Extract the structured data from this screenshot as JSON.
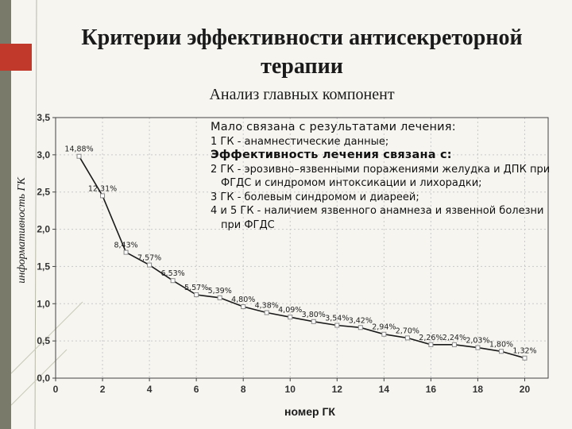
{
  "slide": {
    "title_line1": "Критерии эффективности антисекреторной",
    "title_line2": "терапии",
    "subtitle": "Анализ главных компонент"
  },
  "note": {
    "header1": "Мало связана с результатами лечения:",
    "item1": "1 ГК - анамнестические данные;",
    "header2": "Эффективность лечения связана с:",
    "item2": "2 ГК - эрозивно–язвенными поражениями желудка и ДПК при ФГДС и синдромом интоксикации и лихорадки;",
    "item3": "3 ГК - болевым синдромом и диареей;",
    "item4": "4 и 5 ГК - наличием язвенного анамнеза и язвенной болезни при ФГДС"
  },
  "colors": {
    "line": "#1a1a1a",
    "marker_fill": "#ffffff",
    "marker_stroke": "#888888",
    "accent": "#c0392b"
  },
  "chart_data": {
    "type": "line",
    "xlabel": "номер ГК",
    "ylabel": "информативность ГК",
    "xlim": [
      0,
      21
    ],
    "ylim": [
      0,
      3.5
    ],
    "xticks": [
      "0",
      "2",
      "4",
      "6",
      "8",
      "10",
      "12",
      "14",
      "16",
      "18",
      "20"
    ],
    "yticks": [
      "0,0",
      "0,5",
      "1,0",
      "1,5",
      "2,0",
      "2,5",
      "3,0",
      "3,5"
    ],
    "grid": true,
    "x": [
      1,
      2,
      3,
      4,
      5,
      6,
      7,
      8,
      9,
      10,
      11,
      12,
      13,
      14,
      15,
      16,
      17,
      18,
      19,
      20
    ],
    "y": [
      2.98,
      2.45,
      1.69,
      1.52,
      1.31,
      1.12,
      1.08,
      0.96,
      0.88,
      0.82,
      0.76,
      0.71,
      0.68,
      0.59,
      0.54,
      0.45,
      0.45,
      0.41,
      0.36,
      0.27
    ],
    "labels": [
      "14,88%",
      "12,31%",
      "8,43%",
      "7,57%",
      "6,53%",
      "5,57%",
      "5,39%",
      "4,80%",
      "4,38%",
      "4,09%",
      "3,80%",
      "3,54%",
      "3,42%",
      "2,94%",
      "2,70%",
      "2,26%",
      "2,24%",
      "2,03%",
      "1,80%",
      "1,32%"
    ]
  }
}
